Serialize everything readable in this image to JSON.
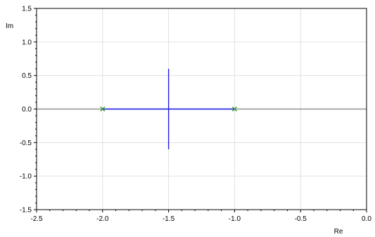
{
  "chart_data": {
    "type": "root-locus",
    "title": "",
    "xlabel": "Re",
    "ylabel": "Im",
    "xlim": [
      -2.5,
      0.0
    ],
    "ylim": [
      -1.5,
      1.5
    ],
    "xticks": [
      "-2.5",
      "-2.0",
      "-1.5",
      "-1.0",
      "-0.5",
      "0.0"
    ],
    "yticks": [
      "1.5",
      "1.0",
      "0.5",
      "0.0",
      "-0.5",
      "-1.0",
      "-1.5"
    ],
    "grid": true,
    "poles": [
      {
        "re": -2.0,
        "im": 0.0
      },
      {
        "re": -1.0,
        "im": 0.0
      }
    ],
    "branches": [
      {
        "points": [
          [
            -2.0,
            0.0
          ],
          [
            -1.0,
            0.0
          ]
        ]
      },
      {
        "points": [
          [
            -1.5,
            0.6
          ],
          [
            -1.5,
            -0.6
          ]
        ]
      }
    ],
    "colors": {
      "branch": "#1f1fe6",
      "pole_marker": "#2a9a2a",
      "real_axis": "#909090",
      "grid": "#e0e0e0",
      "frame": "#000000"
    }
  }
}
